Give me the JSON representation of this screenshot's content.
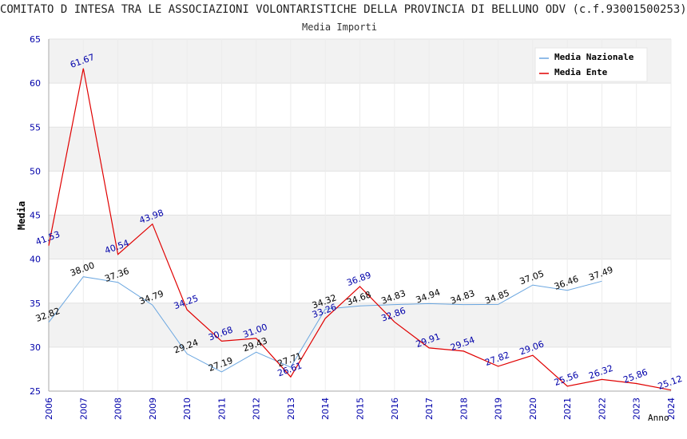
{
  "title": "COMITATO D INTESA TRA LE ASSOCIAZIONI VOLONTARISTICHE DELLA PROVINCIA DI BELLUNO ODV (c.f.93001500253)",
  "subtitle": "Media Importi",
  "chart_data": {
    "type": "line",
    "xlabel": "Anno",
    "ylabel": "Media",
    "ylim": [
      25,
      65
    ],
    "yticks": [
      25,
      30,
      35,
      40,
      45,
      50,
      55,
      60,
      65
    ],
    "x": [
      "2006",
      "2007",
      "2008",
      "2009",
      "2010",
      "2011",
      "2012",
      "2013",
      "2014",
      "2015",
      "2016",
      "2017",
      "2018",
      "2019",
      "2020",
      "2021",
      "2022",
      "2023",
      "2024"
    ],
    "series": [
      {
        "name": "Media Nazionale",
        "color": "#6aa6e0",
        "values": [
          32.82,
          38.0,
          37.36,
          34.79,
          29.24,
          27.19,
          29.43,
          27.71,
          34.32,
          34.68,
          34.83,
          34.94,
          34.83,
          34.85,
          37.05,
          36.46,
          37.49,
          null,
          null
        ],
        "labels": [
          "32.82",
          "38.00",
          "37.36",
          "34.79",
          "29.24",
          "27.19",
          "29.43",
          "27.71",
          "34.32",
          "34.68",
          "34.83",
          "34.94",
          "34.83",
          "34.85",
          "37.05",
          "36.46",
          "37.49",
          null,
          null
        ]
      },
      {
        "name": "Media Ente",
        "color": "#e00000",
        "values": [
          41.53,
          61.67,
          40.54,
          43.98,
          34.25,
          30.68,
          31.0,
          26.61,
          33.26,
          36.89,
          32.86,
          29.91,
          29.54,
          27.82,
          29.06,
          25.56,
          26.32,
          25.86,
          25.12
        ],
        "labels": [
          "41.53",
          "61.67",
          "40.54",
          "43.98",
          "34.25",
          "30.68",
          "31.00",
          "26.61",
          "33.26",
          "36.89",
          "32.86",
          "29.91",
          "29.54",
          "27.82",
          "29.06",
          "25.56",
          "26.32",
          "25.86",
          "25.12"
        ]
      }
    ],
    "grid": true,
    "legend": "top-right"
  }
}
